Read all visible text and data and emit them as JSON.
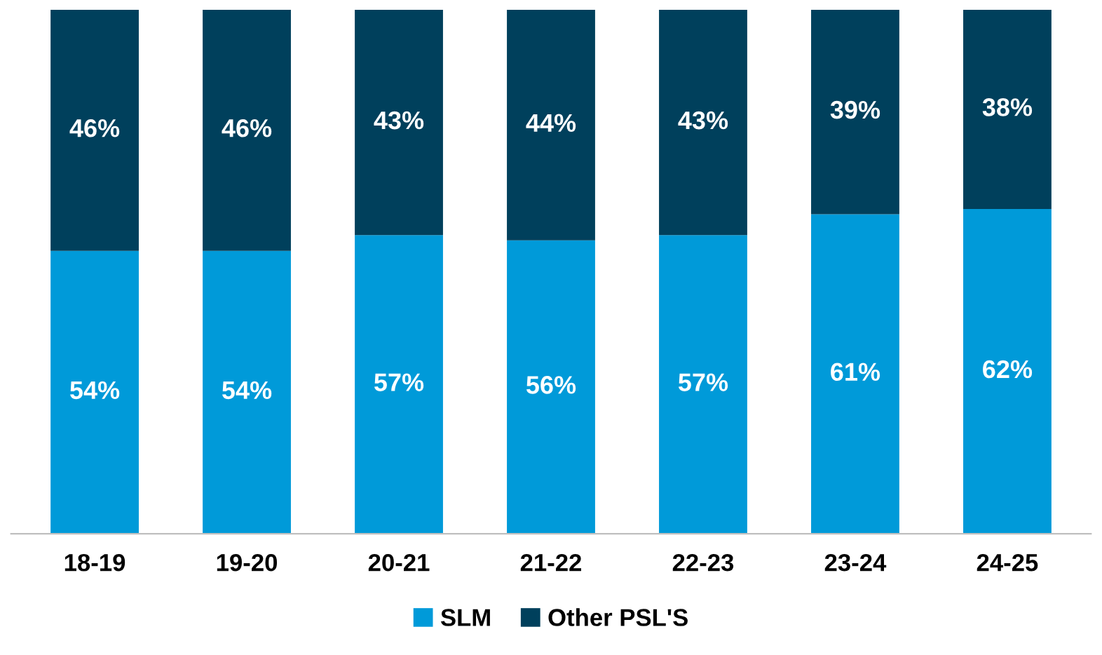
{
  "chart_data": {
    "type": "bar",
    "stacked": true,
    "categories": [
      "18-19",
      "19-20",
      "20-21",
      "21-22",
      "22-23",
      "23-24",
      "24-25"
    ],
    "series": [
      {
        "name": "SLM",
        "color": "#009ad9",
        "values": [
          54,
          54,
          57,
          56,
          57,
          61,
          62
        ],
        "value_labels": [
          "54%",
          "54%",
          "57%",
          "56%",
          "57%",
          "61%",
          "62%"
        ]
      },
      {
        "name": "Other PSL'S",
        "color": "#00405c",
        "values": [
          46,
          46,
          43,
          44,
          43,
          39,
          38
        ],
        "value_labels": [
          "46%",
          "46%",
          "43%",
          "44%",
          "43%",
          "39%",
          "38%"
        ]
      }
    ],
    "legend": "bottom",
    "grid": false
  }
}
